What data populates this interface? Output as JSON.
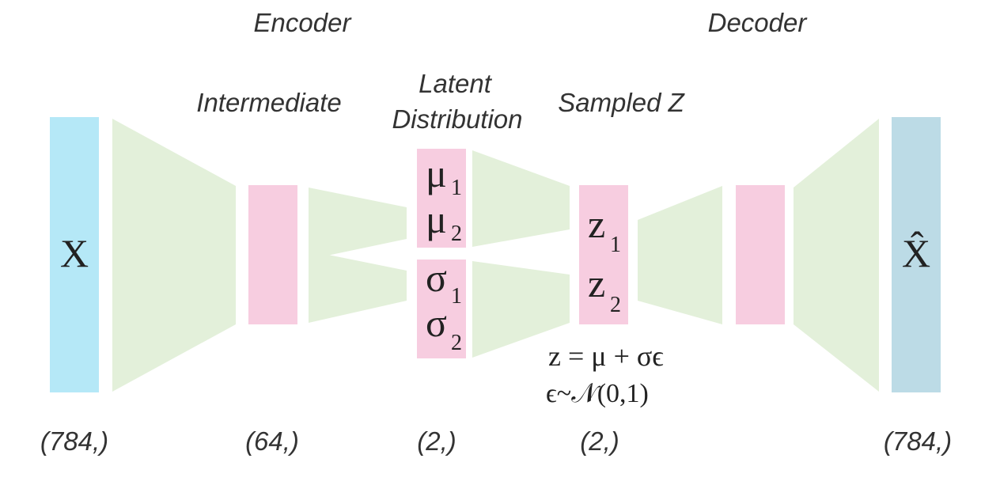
{
  "headers": {
    "encoder": "Encoder",
    "decoder": "Decoder",
    "intermediate": "Intermediate",
    "latent_line1": "Latent",
    "latent_line2": "Distribution",
    "sampled": "Sampled Z"
  },
  "blocks": {
    "input": "X",
    "output": "X̂",
    "mu": [
      {
        "sym": "μ",
        "sub": "1"
      },
      {
        "sym": "μ",
        "sub": "2"
      }
    ],
    "sigma": [
      {
        "sym": "σ",
        "sub": "1"
      },
      {
        "sym": "σ",
        "sub": "2"
      }
    ],
    "z": [
      {
        "sym": "z",
        "sub": "1"
      },
      {
        "sym": "z",
        "sub": "2"
      }
    ]
  },
  "equations": {
    "line1": "z = μ + σϵ",
    "line2": "ϵ~𝒩(0,1)"
  },
  "shapes": {
    "input": "(784,)",
    "intermediate": "(64,)",
    "latent": "(2,)",
    "sampled": "(2,)",
    "output": "(784,)"
  },
  "colors": {
    "input_block": "#b5e8f7",
    "output_block": "#bcdbe6",
    "layer_block": "#f7cde0",
    "funnel": "#e3f0da"
  }
}
